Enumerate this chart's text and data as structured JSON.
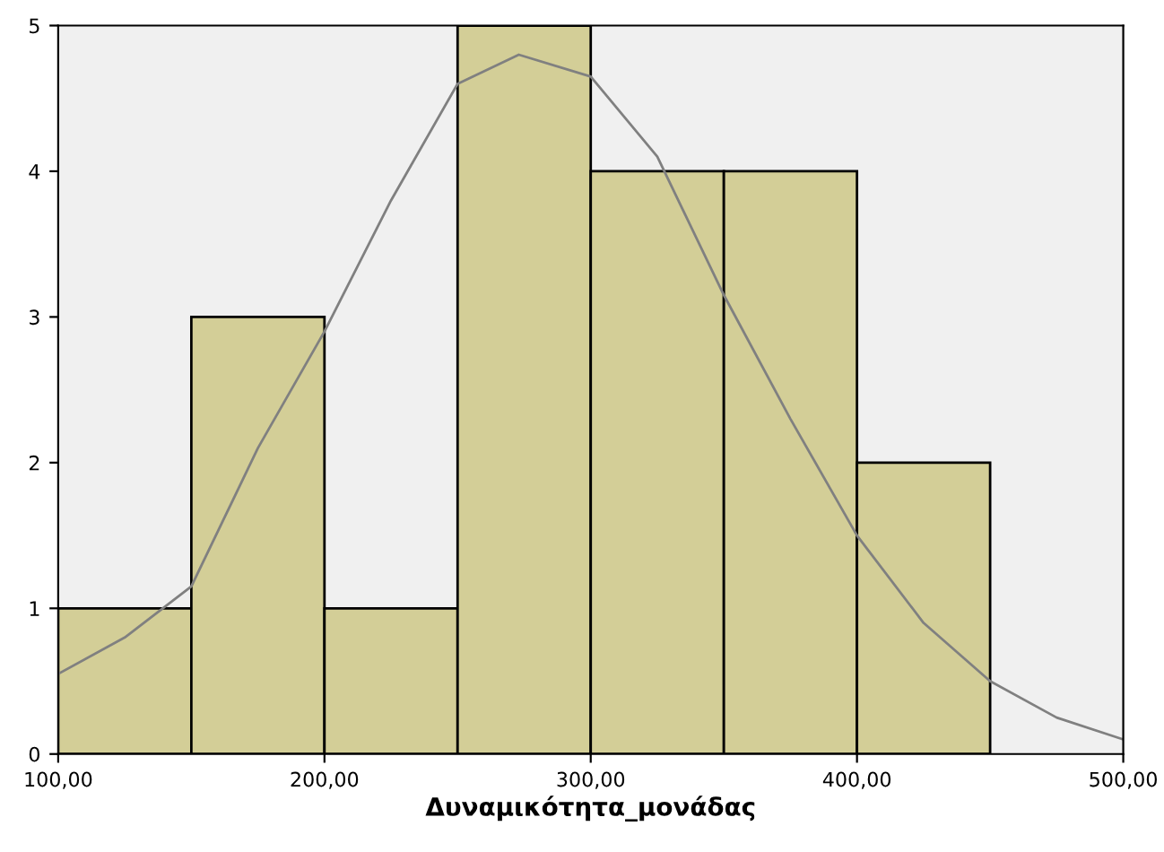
{
  "chart_data": {
    "type": "histogram",
    "xlabel": "Δυναμικότητα_μονάδας",
    "bins": [
      100,
      150,
      200,
      250,
      300,
      350,
      400,
      450
    ],
    "values": [
      1,
      3,
      1,
      5,
      4,
      4,
      2
    ],
    "color": "#d3ce97",
    "series": [
      {
        "type": "line",
        "color": "#808080",
        "x": [
          100,
          125,
          150,
          175,
          200,
          225,
          250,
          273,
          300,
          325,
          350,
          375,
          400,
          425,
          450,
          475,
          500
        ],
        "values": [
          0.55,
          0.8,
          1.15,
          2.1,
          2.9,
          3.8,
          4.6,
          4.8,
          4.65,
          4.1,
          3.15,
          2.3,
          1.5,
          0.9,
          0.5,
          0.25,
          0.1
        ]
      }
    ],
    "xlim": [
      100,
      500
    ],
    "ylim": [
      0,
      5
    ],
    "xticks": [
      {
        "value": 100,
        "label": "100,00"
      },
      {
        "value": 200,
        "label": "200,00"
      },
      {
        "value": 300,
        "label": "300,00"
      },
      {
        "value": 400,
        "label": "400,00"
      },
      {
        "value": 500,
        "label": "500,00"
      }
    ],
    "yticks": [
      0,
      1,
      2,
      3,
      4,
      5
    ],
    "grid": false
  }
}
